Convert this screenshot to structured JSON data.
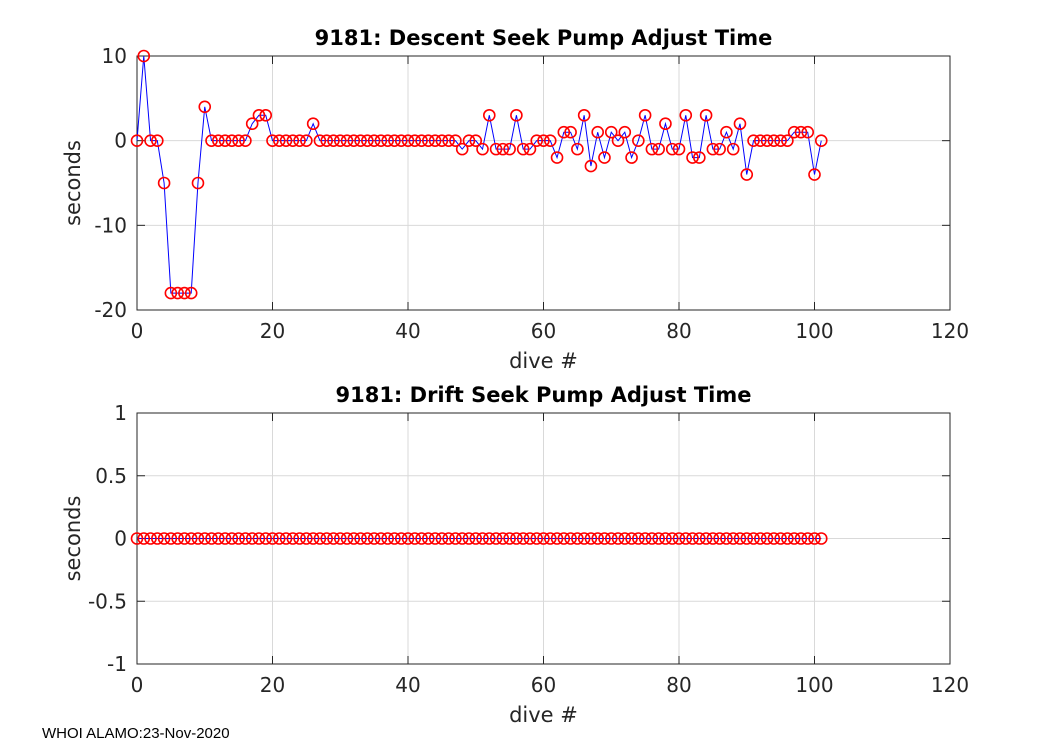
{
  "footer": "WHOI ALAMO:23-Nov-2020",
  "colors": {
    "line": "#0000ff",
    "marker": "#ff0000",
    "grid": "#d9d9d9",
    "axes": "#262626"
  },
  "chart_data": [
    {
      "type": "line",
      "title": "9181: Descent Seek Pump Adjust Time",
      "xlabel": "dive #",
      "ylabel": "seconds",
      "xlim": [
        0,
        120
      ],
      "ylim": [
        -20,
        10
      ],
      "xticks": [
        0,
        20,
        40,
        60,
        80,
        100,
        120
      ],
      "yticks": [
        -20,
        -10,
        0,
        10
      ],
      "grid": true,
      "marker": "circle",
      "series": [
        {
          "x": [
            0,
            1,
            2,
            3,
            4,
            5,
            6,
            7,
            8,
            9,
            10,
            11,
            12,
            13,
            14,
            15,
            16,
            17,
            18,
            19,
            20,
            21,
            22,
            23,
            24,
            25,
            26,
            27,
            28,
            29,
            30,
            31,
            32,
            33,
            34,
            35,
            36,
            37,
            38,
            39,
            40,
            41,
            42,
            43,
            44,
            45,
            46,
            47,
            48,
            49,
            50,
            51,
            52,
            53,
            54,
            55,
            56,
            57,
            58,
            59,
            60,
            61,
            62,
            63,
            64,
            65,
            66,
            67,
            68,
            69,
            70,
            71,
            72,
            73,
            74,
            75,
            76,
            77,
            78,
            79,
            80,
            81,
            82,
            83,
            84,
            85,
            86,
            87,
            88,
            89,
            90,
            91,
            92,
            93,
            94,
            95,
            96,
            97,
            98,
            99,
            100,
            101
          ],
          "y": [
            0,
            10,
            0,
            0,
            -5,
            -18,
            -18,
            -18,
            -18,
            -5,
            4,
            0,
            0,
            0,
            0,
            0,
            0,
            2,
            3,
            3,
            0,
            0,
            0,
            0,
            0,
            0,
            2,
            0,
            0,
            0,
            0,
            0,
            0,
            0,
            0,
            0,
            0,
            0,
            0,
            0,
            0,
            0,
            0,
            0,
            0,
            0,
            0,
            0,
            -1,
            0,
            0,
            -1,
            3,
            -1,
            -1,
            -1,
            3,
            -1,
            -1,
            0,
            0,
            0,
            -2,
            1,
            1,
            -1,
            3,
            -3,
            1,
            -2,
            1,
            0,
            1,
            -2,
            0,
            3,
            -1,
            -1,
            2,
            -1,
            -1,
            3,
            -2,
            -2,
            3,
            -1,
            -1,
            1,
            -1,
            2,
            -4,
            0,
            0,
            0,
            0,
            0,
            0,
            1,
            1,
            1,
            -4,
            0
          ]
        }
      ]
    },
    {
      "type": "line",
      "title": "9181: Drift Seek Pump Adjust Time",
      "xlabel": "dive #",
      "ylabel": "seconds",
      "xlim": [
        0,
        120
      ],
      "ylim": [
        -1,
        1
      ],
      "xticks": [
        0,
        20,
        40,
        60,
        80,
        100,
        120
      ],
      "yticks": [
        -1,
        -0.5,
        0,
        0.5,
        1
      ],
      "grid": true,
      "marker": "circle",
      "series": [
        {
          "x": [
            0,
            1,
            2,
            3,
            4,
            5,
            6,
            7,
            8,
            9,
            10,
            11,
            12,
            13,
            14,
            15,
            16,
            17,
            18,
            19,
            20,
            21,
            22,
            23,
            24,
            25,
            26,
            27,
            28,
            29,
            30,
            31,
            32,
            33,
            34,
            35,
            36,
            37,
            38,
            39,
            40,
            41,
            42,
            43,
            44,
            45,
            46,
            47,
            48,
            49,
            50,
            51,
            52,
            53,
            54,
            55,
            56,
            57,
            58,
            59,
            60,
            61,
            62,
            63,
            64,
            65,
            66,
            67,
            68,
            69,
            70,
            71,
            72,
            73,
            74,
            75,
            76,
            77,
            78,
            79,
            80,
            81,
            82,
            83,
            84,
            85,
            86,
            87,
            88,
            89,
            90,
            91,
            92,
            93,
            94,
            95,
            96,
            97,
            98,
            99,
            100,
            101
          ],
          "y": [
            0,
            0,
            0,
            0,
            0,
            0,
            0,
            0,
            0,
            0,
            0,
            0,
            0,
            0,
            0,
            0,
            0,
            0,
            0,
            0,
            0,
            0,
            0,
            0,
            0,
            0,
            0,
            0,
            0,
            0,
            0,
            0,
            0,
            0,
            0,
            0,
            0,
            0,
            0,
            0,
            0,
            0,
            0,
            0,
            0,
            0,
            0,
            0,
            0,
            0,
            0,
            0,
            0,
            0,
            0,
            0,
            0,
            0,
            0,
            0,
            0,
            0,
            0,
            0,
            0,
            0,
            0,
            0,
            0,
            0,
            0,
            0,
            0,
            0,
            0,
            0,
            0,
            0,
            0,
            0,
            0,
            0,
            0,
            0,
            0,
            0,
            0,
            0,
            0,
            0,
            0,
            0,
            0,
            0,
            0,
            0,
            0,
            0,
            0,
            0,
            0,
            0
          ]
        }
      ]
    }
  ]
}
